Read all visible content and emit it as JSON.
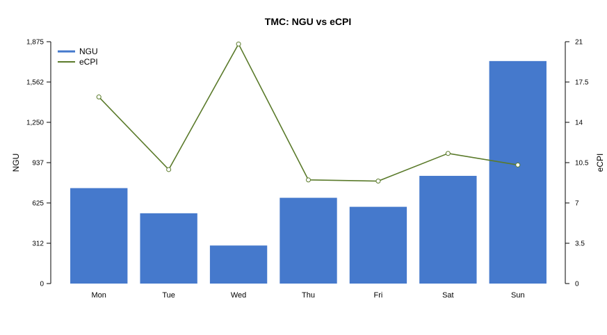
{
  "chart_data": {
    "type": "bar",
    "title": "TMC: NGU vs eCPI",
    "categories": [
      "Mon",
      "Tue",
      "Wed",
      "Thu",
      "Fri",
      "Sat",
      "Sun"
    ],
    "series": [
      {
        "name": "NGU",
        "type": "bar",
        "axis": "left",
        "color": "#4579CC",
        "values": [
          740,
          545,
          295,
          665,
          595,
          835,
          1725
        ]
      },
      {
        "name": "eCPI",
        "type": "line",
        "axis": "right",
        "color": "#5A7A2A",
        "values": [
          16.2,
          9.9,
          20.8,
          9.0,
          8.9,
          11.3,
          10.3
        ]
      }
    ],
    "ylabel": "NGU",
    "y2label": "eCPI",
    "ylim": [
      0,
      1875
    ],
    "y2lim": [
      0,
      21
    ],
    "yticks": [
      "0",
      "312",
      "625",
      "937",
      "1,250",
      "1,562",
      "1,875"
    ],
    "y2ticks": [
      "0",
      "3.5",
      "7",
      "10.5",
      "14",
      "17.5",
      "21"
    ],
    "grid": false,
    "legend_position": "top-left"
  }
}
